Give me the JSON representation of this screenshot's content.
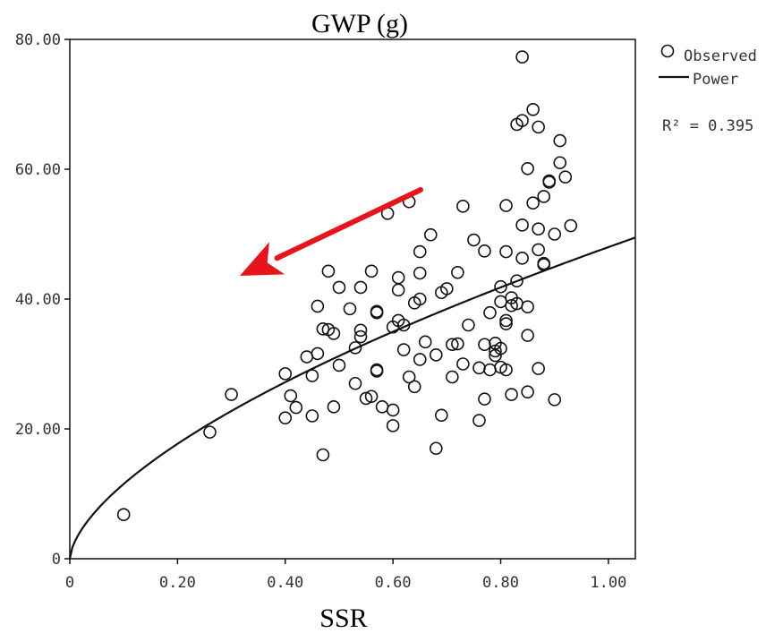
{
  "chart_data": {
    "type": "scatter",
    "title": "GWP (g)",
    "xlabel": "SSR",
    "ylabel": "",
    "xlim": [
      0,
      1.05
    ],
    "ylim": [
      0,
      80
    ],
    "x_ticks": [
      0,
      0.2,
      0.4,
      0.6,
      0.8,
      1.0
    ],
    "x_tick_labels": [
      "0",
      "0.20",
      "0.40",
      "0.60",
      "0.80",
      "1.00"
    ],
    "y_ticks": [
      0,
      20,
      40,
      60,
      80
    ],
    "y_tick_labels": [
      "0",
      "20.00",
      "40.00",
      "60.00",
      "80.00"
    ],
    "grid": false,
    "legend": {
      "placement": "top-right-outside",
      "entries": [
        {
          "label": "Observed",
          "marker": "circle"
        },
        {
          "label": "Power",
          "marker": "line"
        }
      ]
    },
    "r_squared_label": "R² = 0.395",
    "fit": {
      "name": "Power",
      "form": "y = a*x^b",
      "a": 48.0,
      "b": 0.62
    },
    "annotation": {
      "type": "arrow",
      "color": "#e8141b",
      "direction": "down-left"
    },
    "series": [
      {
        "name": "Observed",
        "points": [
          [
            0.1,
            6.8
          ],
          [
            0.26,
            19.5
          ],
          [
            0.3,
            25.3
          ],
          [
            0.4,
            21.7
          ],
          [
            0.4,
            28.5
          ],
          [
            0.41,
            25.1
          ],
          [
            0.42,
            23.3
          ],
          [
            0.44,
            31.1
          ],
          [
            0.45,
            28.2
          ],
          [
            0.45,
            22.0
          ],
          [
            0.46,
            31.6
          ],
          [
            0.46,
            38.9
          ],
          [
            0.47,
            16.0
          ],
          [
            0.47,
            35.4
          ],
          [
            0.48,
            35.3
          ],
          [
            0.48,
            44.3
          ],
          [
            0.49,
            34.7
          ],
          [
            0.49,
            23.4
          ],
          [
            0.5,
            29.8
          ],
          [
            0.5,
            41.8
          ],
          [
            0.52,
            38.5
          ],
          [
            0.53,
            27.0
          ],
          [
            0.53,
            32.5
          ],
          [
            0.54,
            34.2
          ],
          [
            0.54,
            35.2
          ],
          [
            0.54,
            41.8
          ],
          [
            0.55,
            24.7
          ],
          [
            0.56,
            25.0
          ],
          [
            0.56,
            44.3
          ],
          [
            0.57,
            29.1
          ],
          [
            0.57,
            37.9
          ],
          [
            0.57,
            38.1
          ],
          [
            0.57,
            28.9
          ],
          [
            0.58,
            23.4
          ],
          [
            0.59,
            53.2
          ],
          [
            0.6,
            20.5
          ],
          [
            0.6,
            22.9
          ],
          [
            0.6,
            35.7
          ],
          [
            0.61,
            36.7
          ],
          [
            0.61,
            43.3
          ],
          [
            0.61,
            41.4
          ],
          [
            0.62,
            32.2
          ],
          [
            0.62,
            36.0
          ],
          [
            0.63,
            55.0
          ],
          [
            0.63,
            28.0
          ],
          [
            0.64,
            26.5
          ],
          [
            0.64,
            39.4
          ],
          [
            0.65,
            40.0
          ],
          [
            0.65,
            30.7
          ],
          [
            0.65,
            47.3
          ],
          [
            0.65,
            44.0
          ],
          [
            0.66,
            33.4
          ],
          [
            0.67,
            49.9
          ],
          [
            0.68,
            17.0
          ],
          [
            0.68,
            31.4
          ],
          [
            0.69,
            41.0
          ],
          [
            0.69,
            22.1
          ],
          [
            0.7,
            41.6
          ],
          [
            0.71,
            33.0
          ],
          [
            0.71,
            28.0
          ],
          [
            0.72,
            44.1
          ],
          [
            0.72,
            33.1
          ],
          [
            0.73,
            30.0
          ],
          [
            0.73,
            54.3
          ],
          [
            0.74,
            36.0
          ],
          [
            0.75,
            49.1
          ],
          [
            0.76,
            29.4
          ],
          [
            0.76,
            21.3
          ],
          [
            0.77,
            47.4
          ],
          [
            0.77,
            33.0
          ],
          [
            0.77,
            24.6
          ],
          [
            0.78,
            29.1
          ],
          [
            0.78,
            37.9
          ],
          [
            0.79,
            31.3
          ],
          [
            0.79,
            33.2
          ],
          [
            0.79,
            32.0
          ],
          [
            0.8,
            41.9
          ],
          [
            0.8,
            32.4
          ],
          [
            0.8,
            29.5
          ],
          [
            0.8,
            39.6
          ],
          [
            0.81,
            54.4
          ],
          [
            0.81,
            47.3
          ],
          [
            0.81,
            36.7
          ],
          [
            0.81,
            36.2
          ],
          [
            0.81,
            29.1
          ],
          [
            0.82,
            39.0
          ],
          [
            0.82,
            40.2
          ],
          [
            0.82,
            25.3
          ],
          [
            0.83,
            42.8
          ],
          [
            0.83,
            39.3
          ],
          [
            0.83,
            66.9
          ],
          [
            0.84,
            67.5
          ],
          [
            0.84,
            77.3
          ],
          [
            0.84,
            51.4
          ],
          [
            0.84,
            46.3
          ],
          [
            0.85,
            34.4
          ],
          [
            0.85,
            60.1
          ],
          [
            0.85,
            38.8
          ],
          [
            0.85,
            25.7
          ],
          [
            0.86,
            54.8
          ],
          [
            0.86,
            69.2
          ],
          [
            0.87,
            66.5
          ],
          [
            0.87,
            47.6
          ],
          [
            0.87,
            50.8
          ],
          [
            0.87,
            29.3
          ],
          [
            0.88,
            45.3
          ],
          [
            0.88,
            45.5
          ],
          [
            0.88,
            55.8
          ],
          [
            0.89,
            58.2
          ],
          [
            0.89,
            58.0
          ],
          [
            0.9,
            24.5
          ],
          [
            0.9,
            50.0
          ],
          [
            0.91,
            64.4
          ],
          [
            0.91,
            61.0
          ],
          [
            0.92,
            58.8
          ],
          [
            0.93,
            51.3
          ]
        ]
      }
    ]
  }
}
